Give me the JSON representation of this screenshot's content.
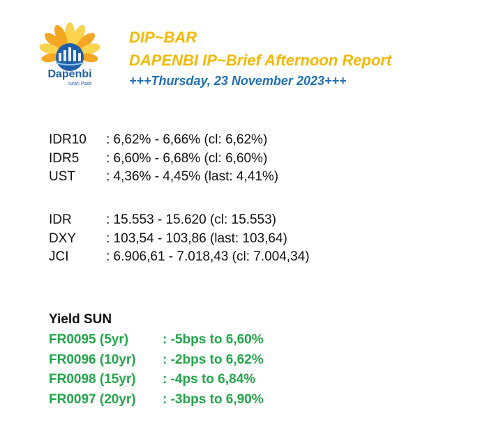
{
  "header": {
    "title": "DIP~BAR",
    "subtitle": "DAPENBI IP~Brief Afternoon Report",
    "date": "+++Thursday, 23 November 2023+++"
  },
  "logo": {
    "name": "Dapenbi",
    "tagline": "Iuran Pasti",
    "colors": {
      "petal": "#f5a623",
      "petal_light": "#fbd34d",
      "globe": "#1f5fa8",
      "text": "#1f5fa8"
    }
  },
  "rates_group1": [
    {
      "label": "IDR10",
      "value": ": 6,62% - 6,66% (cl: 6,62%)"
    },
    {
      "label": "IDR5",
      "value": ": 6,60% - 6,68% (cl: 6,60%)"
    },
    {
      "label": "UST",
      "value": ": 4,36% - 4,45% (last: 4,41%)"
    }
  ],
  "rates_group2": [
    {
      "label": "IDR",
      "value": ": 15.553 - 15.620 (cl: 15.553)"
    },
    {
      "label": "DXY",
      "value": ": 103,54 - 103,86 (last: 103,64)"
    },
    {
      "label": "JCI",
      "value": ": 6.906,61 - 7.018,43 (cl: 7.004,34)"
    }
  ],
  "yield_sun": {
    "title": "Yield SUN",
    "rows": [
      {
        "label": "FR0095 (5yr)",
        "value": ": -5bps to 6,60%"
      },
      {
        "label": "FR0096 (10yr)",
        "value": ": -2bps to 6,62%"
      },
      {
        "label": "FR0098 (15yr)",
        "value": ": -4ps to 6,84%"
      },
      {
        "label": "FR0097 (20yr)",
        "value": ": -3bps to 6,90%"
      }
    ]
  },
  "colors": {
    "title": "#f5b800",
    "date": "#1f6fb4",
    "yield_green": "#22a64a"
  }
}
